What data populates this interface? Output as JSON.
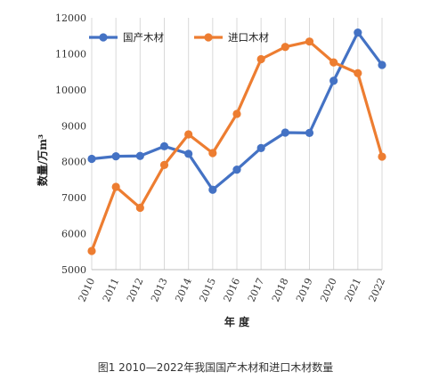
{
  "chart_data": {
    "type": "line",
    "x": [
      "2010",
      "2011",
      "2012",
      "2013",
      "2014",
      "2015",
      "2016",
      "2017",
      "2018",
      "2019",
      "2020",
      "2021",
      "2022"
    ],
    "series": [
      {
        "name": "国产木材",
        "color": "#4472c4",
        "values": [
          8080,
          8150,
          8160,
          8430,
          8220,
          7220,
          7780,
          8380,
          8810,
          8800,
          10250,
          11590,
          10690
        ]
      },
      {
        "name": "进口木材",
        "color": "#ed7d31",
        "values": [
          5520,
          7300,
          6720,
          7910,
          8760,
          8240,
          9330,
          10850,
          11190,
          11340,
          10760,
          10460,
          8140
        ]
      }
    ],
    "xlabel": "年 度",
    "ylabel": "数量/万m³",
    "ylim": [
      5000,
      12000
    ],
    "yticks": [
      5000,
      6000,
      7000,
      8000,
      9000,
      10000,
      11000,
      12000
    ],
    "grid": "vertical",
    "legend": "top-left"
  },
  "caption": "图1  2010—2022年我国国产木材和进口木材数量"
}
